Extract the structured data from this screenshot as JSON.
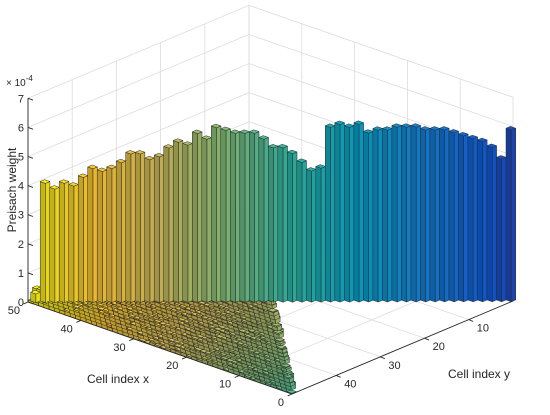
{
  "chart_data": {
    "type": "bar3d",
    "xlabel": "Cell index x",
    "ylabel": "Cell index y",
    "zlabel": "Preisach weight",
    "z_exponent_label": "× 10^-4",
    "z_exponent_base": "× 10",
    "z_exponent_power": "-4",
    "x_ticks": [
      "0",
      "10",
      "20",
      "30",
      "40",
      "50"
    ],
    "y_ticks": [
      "10",
      "20",
      "30",
      "40"
    ],
    "z_ticks": [
      "0",
      "1",
      "2",
      "3",
      "4",
      "5",
      "6",
      "7"
    ],
    "xlim": [
      0,
      50
    ],
    "ylim": [
      0,
      50
    ],
    "zlim": [
      0,
      7
    ],
    "colormap": "parula",
    "colors": [
      "#352a87",
      "#0f5cdd",
      "#1481d6",
      "#06a4ca",
      "#2eb7a4",
      "#87bf77",
      "#d1bb59",
      "#fec832",
      "#f9fb0e"
    ],
    "diagonal_series": {
      "name": "",
      "values_e4": [
        0.3,
        4.1,
        3.9,
        4.1,
        4.0,
        4.3,
        4.6,
        4.5,
        4.6,
        4.8,
        5.1,
        5.1,
        4.9,
        5.0,
        5.3,
        5.5,
        5.4,
        5.8,
        5.6,
        6.0,
        5.9,
        5.8,
        5.8,
        5.8,
        5.6,
        5.3,
        5.3,
        5.1,
        4.8,
        4.5,
        4.6,
        6.0,
        6.1,
        6.0,
        6.1,
        5.8,
        5.9,
        5.9,
        6.0,
        6.0,
        6.0,
        5.9,
        5.9,
        5.9,
        5.8,
        5.7,
        5.6,
        5.5,
        5.3,
        4.9,
        5.9
      ]
    },
    "edge_series": {
      "name": "",
      "values_e4": [
        0.4,
        0.3,
        0.5,
        0.2,
        0.3,
        0.6,
        0.4,
        0.3,
        0.2,
        0.5,
        0.3,
        0.4,
        0.6,
        0.3,
        0.2,
        0.4,
        0.5,
        0.3,
        0.7,
        0.4,
        0.3,
        0.2,
        0.4,
        0.3,
        0.5,
        0.3,
        0.2,
        0.4,
        0.9,
        0.6,
        0.3,
        0.5,
        0.4,
        0.3,
        0.2,
        0.6,
        0.4,
        0.3,
        0.2,
        0.3,
        0.4,
        0.2,
        0.3,
        0.2,
        0.4,
        0.3,
        0.2,
        0.3,
        0.2,
        0.6,
        0.8
      ]
    },
    "grid": true
  }
}
